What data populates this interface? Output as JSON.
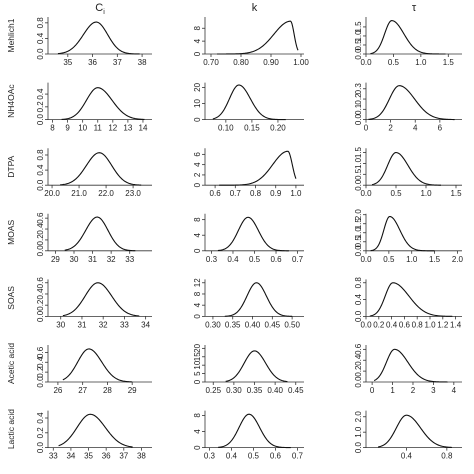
{
  "chart_data": {
    "type": "line",
    "layout": "7x3 grid of density plots",
    "columns": [
      {
        "key": "C",
        "label": "C",
        "subscript": "i"
      },
      {
        "key": "k",
        "label": "k"
      },
      {
        "key": "tau",
        "label": "τ"
      }
    ],
    "rows": [
      {
        "label": "Mehlich1",
        "panels": [
          {
            "xlim": [
              34.2,
              38.4
            ],
            "ylim": [
              0,
              0.95
            ],
            "xticks": [
              "35",
              "36",
              "37",
              "38"
            ],
            "yticks": [
              "0.0",
              "0.4",
              "0.8"
            ],
            "mode": "gauss",
            "peak_x": 36.15,
            "peak_y": 0.82,
            "sl": 0.52,
            "sr": 0.46,
            "xrange": [
              34.6,
              37.9
            ]
          },
          {
            "xlim": [
              0.68,
              1.01
            ],
            "ylim": [
              0,
              11.5
            ],
            "xticks": [
              "0.70",
              "0.80",
              "0.90",
              "1.00"
            ],
            "yticks": [
              "0",
              "4",
              "8"
            ],
            "mode": "gauss",
            "peak_x": 0.965,
            "peak_y": 10.2,
            "sl": 0.055,
            "sr": 0.012,
            "xrange": [
              0.72,
              0.99
            ]
          },
          {
            "xlim": [
              0.0,
              1.75
            ],
            "ylim": [
              0,
              2.05
            ],
            "xticks": [
              "0.0",
              "0.5",
              "1.0",
              "1.5"
            ],
            "yticks": [
              "0.0",
              "0.5",
              "1.0",
              "1.5"
            ],
            "mode": "gauss",
            "peak_x": 0.47,
            "peak_y": 1.85,
            "sl": 0.13,
            "sr": 0.22,
            "xrange": [
              0.08,
              1.45
            ]
          }
        ]
      },
      {
        "label": "NH4OAc",
        "panels": [
          {
            "xlim": [
              7.7,
              14.6
            ],
            "ylim": [
              0,
              0.58
            ],
            "xticks": [
              "8",
              "9",
              "10",
              "11",
              "12",
              "13",
              "14"
            ],
            "yticks": [
              "0.0",
              "0.2",
              "0.4"
            ],
            "mode": "gauss",
            "peak_x": 11.0,
            "peak_y": 0.5,
            "sl": 0.75,
            "sr": 0.95,
            "xrange": [
              8.6,
              14.1
            ]
          },
          {
            "xlim": [
              0.06,
              0.25
            ],
            "ylim": [
              0,
              23
            ],
            "xticks": [
              "0.10",
              "0.15",
              "0.20"
            ],
            "yticks": [
              "0",
              "10",
              "20"
            ],
            "mode": "gauss",
            "peak_x": 0.125,
            "peak_y": 21.5,
            "sl": 0.018,
            "sr": 0.022,
            "xrange": [
              0.075,
              0.215
            ]
          },
          {
            "xlim": [
              0,
              7.8
            ],
            "ylim": [
              0,
              0.36
            ],
            "xticks": [
              "0",
              "2",
              "4",
              "6"
            ],
            "yticks": [
              "0.0",
              "0.1",
              "0.2",
              "0.3"
            ],
            "mode": "gauss",
            "peak_x": 2.7,
            "peak_y": 0.33,
            "sl": 0.8,
            "sr": 1.25,
            "xrange": [
              0.2,
              7.2
            ]
          }
        ]
      },
      {
        "label": "DTPA",
        "panels": [
          {
            "xlim": [
              19.85,
              23.7
            ],
            "ylim": [
              0,
              0.98
            ],
            "xticks": [
              "20.0",
              "21.0",
              "22.0",
              "23.0"
            ],
            "yticks": [
              "0.0",
              "0.4",
              "0.8"
            ],
            "mode": "gauss",
            "peak_x": 21.75,
            "peak_y": 0.86,
            "sl": 0.48,
            "sr": 0.46,
            "xrange": [
              20.3,
              23.3
            ]
          },
          {
            "xlim": [
              0.55,
              1.04
            ],
            "ylim": [
              0,
              7.2
            ],
            "xticks": [
              "0.6",
              "0.7",
              "0.8",
              "0.9",
              "1.0"
            ],
            "yticks": [
              "0",
              "2",
              "4",
              "6"
            ],
            "mode": "gauss",
            "peak_x": 0.96,
            "peak_y": 6.6,
            "sl": 0.075,
            "sr": 0.022,
            "xrange": [
              0.62,
              1.0
            ]
          },
          {
            "xlim": [
              0.0,
              1.6
            ],
            "ylim": [
              0,
              1.7
            ],
            "xticks": [
              "0.0",
              "0.5",
              "1.0",
              "1.5"
            ],
            "yticks": [
              "0.0",
              "0.5",
              "1.0",
              "1.5"
            ],
            "mode": "gauss",
            "peak_x": 0.5,
            "peak_y": 1.5,
            "sl": 0.14,
            "sr": 0.2,
            "xrange": [
              0.1,
              1.25
            ]
          }
        ]
      },
      {
        "label": "MOAS",
        "panels": [
          {
            "xlim": [
              28.6,
              34.2
            ],
            "ylim": [
              0,
              0.68
            ],
            "xticks": [
              "29",
              "30",
              "31",
              "32",
              "33"
            ],
            "yticks": [
              "0.0",
              "0.2",
              "0.4",
              "0.6"
            ],
            "mode": "gauss",
            "peak_x": 31.25,
            "peak_y": 0.62,
            "sl": 0.62,
            "sr": 0.58,
            "xrange": [
              29.5,
              33.3
            ]
          },
          {
            "xlim": [
              0.27,
              0.73
            ],
            "ylim": [
              0,
              9.5
            ],
            "xticks": [
              "0.3",
              "0.4",
              "0.5",
              "0.6",
              "0.7"
            ],
            "yticks": [
              "0",
              "4",
              "8"
            ],
            "mode": "gauss",
            "peak_x": 0.47,
            "peak_y": 8.6,
            "sl": 0.045,
            "sr": 0.048,
            "xrange": [
              0.33,
              0.66
            ]
          },
          {
            "xlim": [
              0.0,
              2.1
            ],
            "ylim": [
              0,
              2.05
            ],
            "xticks": [
              "0.0",
              "0.5",
              "1.0",
              "1.5",
              "2.0"
            ],
            "yticks": [
              "0.0",
              "0.5",
              "1.0",
              "1.5",
              "2.0"
            ],
            "mode": "gauss",
            "peak_x": 0.52,
            "peak_y": 1.9,
            "sl": 0.13,
            "sr": 0.22,
            "xrange": [
              0.1,
              1.5
            ]
          }
        ]
      },
      {
        "label": "SOAS",
        "panels": [
          {
            "xlim": [
              29.4,
              34.3
            ],
            "ylim": [
              0,
              0.66
            ],
            "xticks": [
              "30",
              "31",
              "32",
              "33",
              "34"
            ],
            "yticks": [
              "0.0",
              "0.2",
              "0.4",
              "0.6"
            ],
            "mode": "gauss",
            "peak_x": 31.75,
            "peak_y": 0.6,
            "sl": 0.6,
            "sr": 0.65,
            "xrange": [
              30.1,
              33.7
            ]
          },
          {
            "xlim": [
              0.28,
              0.53
            ],
            "ylim": [
              0,
              13.2
            ],
            "xticks": [
              "0.30",
              "0.35",
              "0.40",
              "0.45",
              "0.50"
            ],
            "yticks": [
              "0",
              "4",
              "8",
              "12"
            ],
            "mode": "gauss",
            "peak_x": 0.41,
            "peak_y": 12.0,
            "sl": 0.024,
            "sr": 0.025,
            "xrange": [
              0.33,
              0.5
            ]
          },
          {
            "xlim": [
              0.0,
              1.5
            ],
            "ylim": [
              0,
              0.88
            ],
            "xticks": [
              "0.0",
              "0.2",
              "0.4",
              "0.6",
              "0.8",
              "1.0",
              "1.2",
              "1.4"
            ],
            "yticks": [
              "0.0",
              "0.4",
              "0.8"
            ],
            "mode": "gauss",
            "peak_x": 0.42,
            "peak_y": 0.8,
            "sl": 0.12,
            "sr": 0.25,
            "xrange": [
              0.06,
              1.35
            ]
          }
        ]
      },
      {
        "label": "Acetic acid",
        "panels": [
          {
            "xlim": [
              25.6,
              29.8
            ],
            "ylim": [
              0,
              0.75
            ],
            "xticks": [
              "26",
              "27",
              "28",
              "29"
            ],
            "yticks": [
              "0.0",
              "0.2",
              "0.4",
              "0.6"
            ],
            "mode": "gauss",
            "peak_x": 27.25,
            "peak_y": 0.67,
            "sl": 0.45,
            "sr": 0.52,
            "xrange": [
              26.2,
              29.0
            ]
          },
          {
            "xlim": [
              0.23,
              0.47
            ],
            "ylim": [
              0,
              22
            ],
            "xticks": [
              "0.25",
              "0.30",
              "0.35",
              "0.40",
              "0.45"
            ],
            "yticks": [
              "0",
              "5",
              "10",
              "15",
              "20"
            ],
            "mode": "gauss",
            "peak_x": 0.35,
            "peak_y": 18.5,
            "sl": 0.025,
            "sr": 0.027,
            "xrange": [
              0.28,
              0.43
            ]
          },
          {
            "xlim": [
              -0.3,
              4.4
            ],
            "ylim": [
              0,
              0.68
            ],
            "xticks": [
              "0",
              "1",
              "2",
              "3",
              "4"
            ],
            "yticks": [
              "0.0",
              "0.2",
              "0.4",
              "0.6"
            ],
            "mode": "gauss",
            "peak_x": 1.1,
            "peak_y": 0.6,
            "sl": 0.4,
            "sr": 0.65,
            "xrange": [
              0.1,
              3.7
            ]
          }
        ]
      },
      {
        "label": "Lactic acid",
        "panels": [
          {
            "xlim": [
              32.7,
              38.6
            ],
            "ylim": [
              0,
              0.5
            ],
            "xticks": [
              "33",
              "34",
              "35",
              "36",
              "37",
              "38"
            ],
            "yticks": [
              "0.0",
              "0.2",
              "0.4"
            ],
            "mode": "gauss",
            "peak_x": 35.1,
            "peak_y": 0.45,
            "sl": 0.75,
            "sr": 0.85,
            "xrange": [
              33.3,
              37.5
            ]
          },
          {
            "xlim": [
              0.28,
              0.73
            ],
            "ylim": [
              0,
              9.2
            ],
            "xticks": [
              "0.3",
              "0.4",
              "0.5",
              "0.6",
              "0.7"
            ],
            "yticks": [
              "0",
              "4",
              "8"
            ],
            "mode": "gauss",
            "peak_x": 0.48,
            "peak_y": 8.3,
            "sl": 0.045,
            "sr": 0.048,
            "xrange": [
              0.34,
              0.67
            ]
          },
          {
            "xlim": [
              0.0,
              0.95
            ],
            "ylim": [
              0,
              2.4
            ],
            "xticks": [
              "0.4",
              "0.8"
            ],
            "yticks": [
              "0.0",
              "1.0",
              "2.0"
            ],
            "mode": "gauss",
            "peak_x": 0.4,
            "peak_y": 2.1,
            "sl": 0.1,
            "sr": 0.14,
            "xrange": [
              0.12,
              0.85
            ]
          }
        ]
      }
    ]
  }
}
